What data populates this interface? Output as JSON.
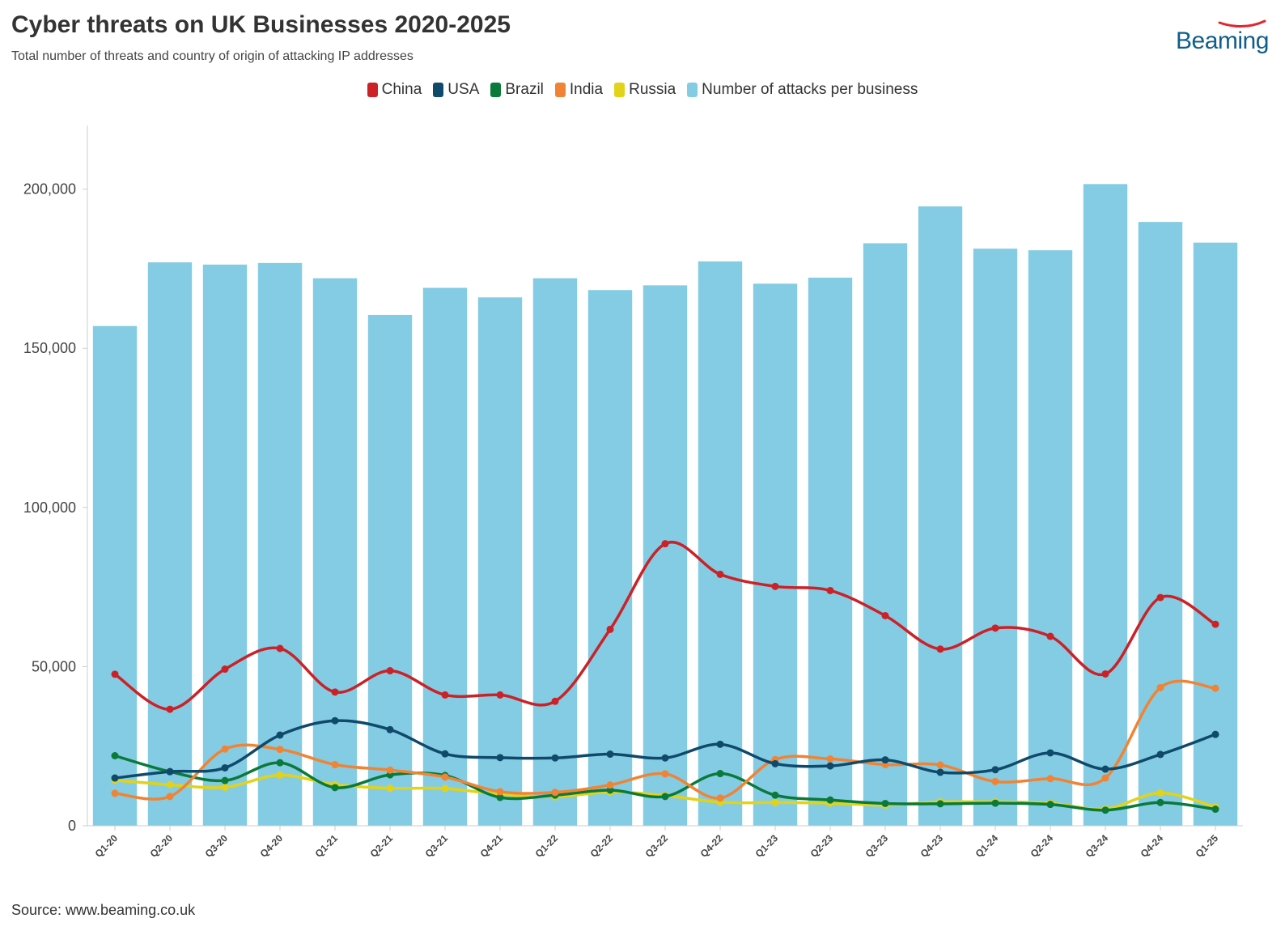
{
  "header": {
    "title": "Cyber threats on UK Businesses 2020-2025",
    "subtitle": "Total number of threats and country of origin of attacking IP addresses"
  },
  "logo": {
    "text": "Beaming",
    "color": "#0f5e8c",
    "swoosh_color": "#e0272e"
  },
  "footer": {
    "source": "Source: www.beaming.co.uk"
  },
  "chart_data": {
    "type": "bar",
    "categories": [
      "Q1-20",
      "Q2-20",
      "Q3-20",
      "Q4-20",
      "Q1-21",
      "Q2-21",
      "Q3-21",
      "Q4-21",
      "Q1-22",
      "Q2-22",
      "Q3-22",
      "Q4-22",
      "Q1-23",
      "Q2-23",
      "Q3-23",
      "Q4-23",
      "Q1-24",
      "Q2-24",
      "Q3-24",
      "Q4-24",
      "Q1-25"
    ],
    "ylim": [
      0,
      220000
    ],
    "yticks": [
      0,
      50000,
      100000,
      150000,
      200000
    ],
    "ytick_labels": [
      "0",
      "50,000",
      "100,000",
      "150,000",
      "200,000"
    ],
    "grid": false,
    "legend_placement": "top-center",
    "bars": {
      "name": "Number of attacks per business",
      "color": "#84cce3",
      "values": [
        157000,
        177000,
        176300,
        176800,
        172000,
        160500,
        169000,
        166000,
        172000,
        168300,
        169800,
        177300,
        170300,
        172200,
        183000,
        194600,
        181300,
        180800,
        201600,
        189700,
        183200
      ]
    },
    "series": [
      {
        "name": "China",
        "color": "#cb2127",
        "values": [
          47600,
          36600,
          49200,
          55700,
          42000,
          48700,
          41100,
          41100,
          39100,
          61700,
          88600,
          79000,
          75200,
          73900,
          66000,
          55500,
          62100,
          59500,
          47700,
          71700,
          63300
        ]
      },
      {
        "name": "USA",
        "color": "#0f4a6b",
        "values": [
          15000,
          17000,
          18200,
          28500,
          33000,
          30200,
          22600,
          21400,
          21300,
          22500,
          21300,
          25600,
          19500,
          18800,
          20700,
          16800,
          17600,
          22900,
          17800,
          22400,
          28700
        ]
      },
      {
        "name": "Brazil",
        "color": "#0a7a3a",
        "values": [
          22000,
          17000,
          14200,
          19800,
          12000,
          16000,
          15800,
          8900,
          9600,
          11200,
          9200,
          16400,
          9600,
          8100,
          7000,
          6900,
          7100,
          6700,
          4900,
          7300,
          5200
        ]
      },
      {
        "name": "India",
        "color": "#f08434",
        "values": [
          10200,
          9200,
          24100,
          24000,
          19200,
          17500,
          15300,
          10700,
          10500,
          12800,
          16300,
          8700,
          20800,
          21000,
          19200,
          19100,
          13900,
          14800,
          15000,
          43400,
          43200
        ]
      },
      {
        "name": "Russia",
        "color": "#e2d319",
        "values": [
          14300,
          12900,
          12100,
          15900,
          12900,
          11800,
          11700,
          9900,
          9100,
          10600,
          9500,
          7400,
          7300,
          7100,
          6500,
          7500,
          7500,
          7100,
          5300,
          10300,
          5900
        ]
      }
    ]
  }
}
